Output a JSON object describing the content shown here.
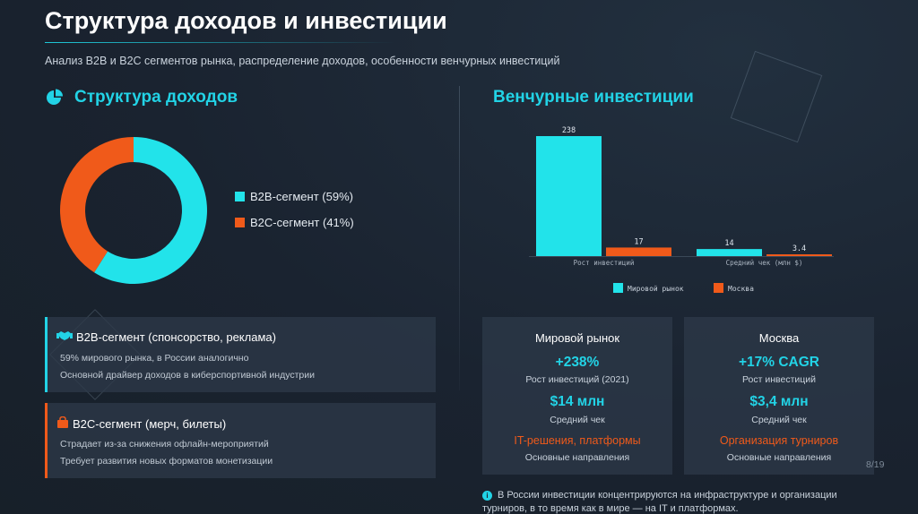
{
  "header": {
    "title": "Структура доходов и инвестиции",
    "subtitle": "Анализ B2B и B2C сегментов рынка, распределение доходов, особенности венчурных инвестиций"
  },
  "income": {
    "section_title": "Структура доходов",
    "legend": [
      {
        "label": "B2B-сегмент (59%)",
        "color": "#22e3ea"
      },
      {
        "label": "B2C-сегмент (41%)",
        "color": "#f05a1a"
      }
    ]
  },
  "segments": {
    "b2b": {
      "title": "B2B-сегмент (спонсорство, реклама)",
      "lines": [
        "59% мирового рынка, в России аналогично",
        "Основной драйвер доходов в киберспортивной индустрии"
      ]
    },
    "b2c": {
      "title": "B2C-сегмент (мерч, билеты)",
      "lines": [
        "Страдает из-за снижения офлайн-мероприятий",
        "Требует развития новых форматов монетизации"
      ]
    }
  },
  "venture": {
    "section_title": "Венчурные инвестиции",
    "cards": [
      {
        "title": "Мировой рынок",
        "growth": "+238%",
        "growth_label": "Рост инвестиций (2021)",
        "check": "$14 млн",
        "check_label": "Средний чек",
        "direction": "IT-решения, платформы",
        "direction_label": "Основные направления"
      },
      {
        "title": "Москва",
        "growth": "+17% CAGR",
        "growth_label": "Рост инвестиций",
        "check": "$3,4 млн",
        "check_label": "Средний чек",
        "direction": "Организация турниров",
        "direction_label": "Основные направления"
      }
    ],
    "note": "В России инвестиции концентрируются на инфраструктуре и организации турниров, в то время как в мире — на IT и платформах."
  },
  "page_number": "8/19",
  "colors": {
    "accent": "#22d3e6",
    "orange": "#f05a1a",
    "background": "#1a2330"
  },
  "icons": {
    "income": "pie-chart-icon",
    "b2b": "handshake-icon",
    "b2c": "shopping-bag-icon",
    "note": "info-icon"
  },
  "chart_data": [
    {
      "type": "pie",
      "categories": [
        "B2B-сегмент",
        "B2C-сегмент"
      ],
      "values": [
        59,
        41
      ],
      "colors": [
        "#22e3ea",
        "#f05a1a"
      ]
    },
    {
      "type": "bar",
      "categories": [
        "Рост инвестиций",
        "Средний чек (млн $)"
      ],
      "series": [
        {
          "name": "Мировой рынок",
          "values": [
            238,
            14
          ],
          "labels": [
            "238",
            "14"
          ],
          "color": "#22e3ea"
        },
        {
          "name": "Москва",
          "values": [
            17,
            3.4
          ],
          "labels": [
            "17",
            "3.4"
          ],
          "color": "#f05a1a"
        }
      ],
      "ylim": [
        0,
        238
      ],
      "legend": "bottom"
    }
  ]
}
